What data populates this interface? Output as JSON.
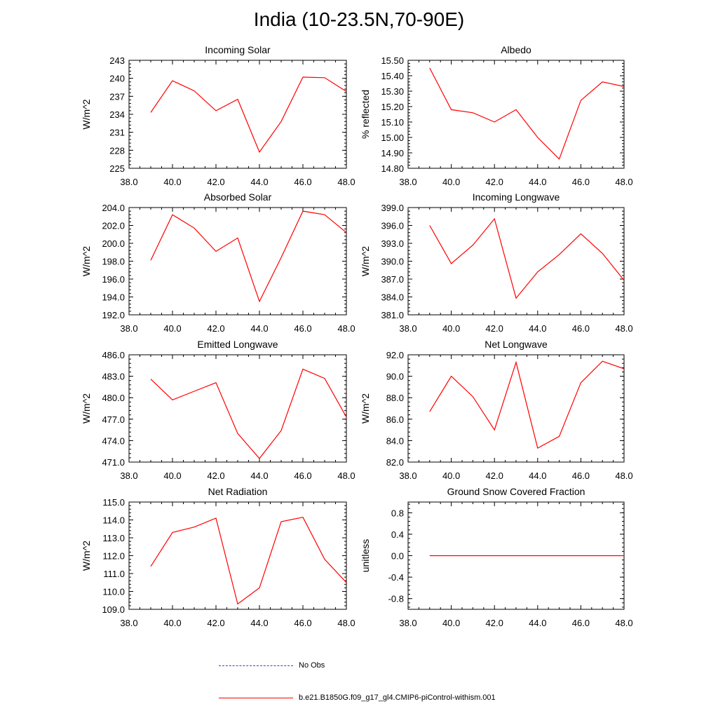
{
  "title": "India (10-23.5N,70-90E)",
  "legend": {
    "items": [
      {
        "label": "No Obs",
        "color": "#4040c0",
        "dash": "dashed"
      },
      {
        "label": "b.e21.B1850G.f09_g17_gl4.CMIP6-piControl-withism.001",
        "color": "#ff0000",
        "dash": "solid"
      }
    ]
  },
  "colors": {
    "series": "#ff0000",
    "axes": "#000000"
  },
  "chart_data": [
    {
      "type": "line",
      "title": "Incoming Solar",
      "ylabel": "W/m^2",
      "xlabel": "",
      "xlim": [
        38.0,
        48.0
      ],
      "ylim": [
        225,
        243
      ],
      "xticks": [
        "38.0",
        "40.0",
        "42.0",
        "44.0",
        "46.0",
        "48.0"
      ],
      "yticks": [
        "225",
        "228",
        "231",
        "234",
        "237",
        "240",
        "243"
      ],
      "series": [
        {
          "color": "#ff0000",
          "x": [
            39,
            40,
            41,
            42,
            43,
            44,
            45,
            46,
            47,
            48
          ],
          "values": [
            234.3,
            239.6,
            237.9,
            234.6,
            236.5,
            227.7,
            232.8,
            240.2,
            240.1,
            237.8
          ]
        }
      ]
    },
    {
      "type": "line",
      "title": "Albedo",
      "ylabel": "% reflected",
      "xlabel": "",
      "xlim": [
        38.0,
        48.0
      ],
      "ylim": [
        14.8,
        15.5
      ],
      "xticks": [
        "38.0",
        "40.0",
        "42.0",
        "44.0",
        "46.0",
        "48.0"
      ],
      "yticks": [
        "14.80",
        "14.90",
        "15.00",
        "15.10",
        "15.20",
        "15.30",
        "15.40",
        "15.50"
      ],
      "series": [
        {
          "color": "#ff0000",
          "x": [
            39,
            40,
            41,
            42,
            43,
            44,
            45,
            46,
            47,
            48
          ],
          "values": [
            15.45,
            15.18,
            15.16,
            15.1,
            15.18,
            15.0,
            14.86,
            15.24,
            15.36,
            15.33
          ]
        }
      ]
    },
    {
      "type": "line",
      "title": "Absorbed Solar",
      "ylabel": "W/m^2",
      "xlabel": "",
      "xlim": [
        38.0,
        48.0
      ],
      "ylim": [
        192.0,
        204.0
      ],
      "xticks": [
        "38.0",
        "40.0",
        "42.0",
        "44.0",
        "46.0",
        "48.0"
      ],
      "yticks": [
        "192.0",
        "194.0",
        "196.0",
        "198.0",
        "200.0",
        "202.0",
        "204.0"
      ],
      "series": [
        {
          "color": "#ff0000",
          "x": [
            39,
            40,
            41,
            42,
            43,
            44,
            45,
            46,
            47,
            48
          ],
          "values": [
            198.1,
            203.2,
            201.7,
            199.1,
            200.6,
            193.5,
            198.4,
            203.6,
            203.2,
            201.2
          ]
        }
      ]
    },
    {
      "type": "line",
      "title": "Incoming Longwave",
      "ylabel": "W/m^2",
      "xlabel": "",
      "xlim": [
        38.0,
        48.0
      ],
      "ylim": [
        381.0,
        399.0
      ],
      "xticks": [
        "38.0",
        "40.0",
        "42.0",
        "44.0",
        "46.0",
        "48.0"
      ],
      "yticks": [
        "381.0",
        "384.0",
        "387.0",
        "390.0",
        "393.0",
        "396.0",
        "399.0"
      ],
      "series": [
        {
          "color": "#ff0000",
          "x": [
            39,
            40,
            41,
            42,
            43,
            44,
            45,
            46,
            47,
            48
          ],
          "values": [
            396.0,
            389.6,
            392.7,
            397.1,
            383.8,
            388.2,
            391.1,
            394.6,
            391.3,
            386.8
          ]
        }
      ]
    },
    {
      "type": "line",
      "title": "Emitted Longwave",
      "ylabel": "W/m^2",
      "xlabel": "",
      "xlim": [
        38.0,
        48.0
      ],
      "ylim": [
        471.0,
        486.0
      ],
      "xticks": [
        "38.0",
        "40.0",
        "42.0",
        "44.0",
        "46.0",
        "48.0"
      ],
      "yticks": [
        "471.0",
        "474.0",
        "477.0",
        "480.0",
        "483.0",
        "486.0"
      ],
      "series": [
        {
          "color": "#ff0000",
          "x": [
            39,
            40,
            41,
            42,
            43,
            44,
            45,
            46,
            47,
            48
          ],
          "values": [
            482.6,
            479.7,
            480.9,
            482.1,
            475.0,
            471.5,
            475.4,
            484.0,
            482.7,
            477.3
          ]
        }
      ]
    },
    {
      "type": "line",
      "title": "Net Longwave",
      "ylabel": "W/m^2",
      "xlabel": "",
      "xlim": [
        38.0,
        48.0
      ],
      "ylim": [
        82.0,
        92.0
      ],
      "xticks": [
        "38.0",
        "40.0",
        "42.0",
        "44.0",
        "46.0",
        "48.0"
      ],
      "yticks": [
        "82.0",
        "84.0",
        "86.0",
        "88.0",
        "90.0",
        "92.0"
      ],
      "series": [
        {
          "color": "#ff0000",
          "x": [
            39,
            40,
            41,
            42,
            43,
            44,
            45,
            46,
            47,
            48
          ],
          "values": [
            86.7,
            90.0,
            88.1,
            85.0,
            91.3,
            83.3,
            84.4,
            89.4,
            91.4,
            90.7
          ]
        }
      ]
    },
    {
      "type": "line",
      "title": "Net Radiation",
      "ylabel": "W/m^2",
      "xlabel": "",
      "xlim": [
        38.0,
        48.0
      ],
      "ylim": [
        109.0,
        115.0
      ],
      "xticks": [
        "38.0",
        "40.0",
        "42.0",
        "44.0",
        "46.0",
        "48.0"
      ],
      "yticks": [
        "109.0",
        "110.0",
        "111.0",
        "112.0",
        "113.0",
        "114.0",
        "115.0"
      ],
      "series": [
        {
          "color": "#ff0000",
          "x": [
            39,
            40,
            41,
            42,
            43,
            44,
            45,
            46,
            47,
            48
          ],
          "values": [
            111.4,
            113.3,
            113.6,
            114.1,
            109.3,
            110.2,
            113.9,
            114.15,
            111.8,
            110.5
          ]
        }
      ]
    },
    {
      "type": "line",
      "title": "Ground Snow Covered Fraction",
      "ylabel": "unitless",
      "xlabel": "",
      "xlim": [
        38.0,
        48.0
      ],
      "ylim": [
        -1.0,
        1.0
      ],
      "xticks": [
        "38.0",
        "40.0",
        "42.0",
        "44.0",
        "46.0",
        "48.0"
      ],
      "yticks": [
        "-0.8",
        "-0.4",
        "0.0",
        "0.4",
        "0.8"
      ],
      "series": [
        {
          "color": "#ff0000",
          "x": [
            39,
            40,
            41,
            42,
            43,
            44,
            45,
            46,
            47,
            48
          ],
          "values": [
            0,
            0,
            0,
            0,
            0,
            0,
            0,
            0,
            0,
            0
          ]
        }
      ]
    }
  ]
}
